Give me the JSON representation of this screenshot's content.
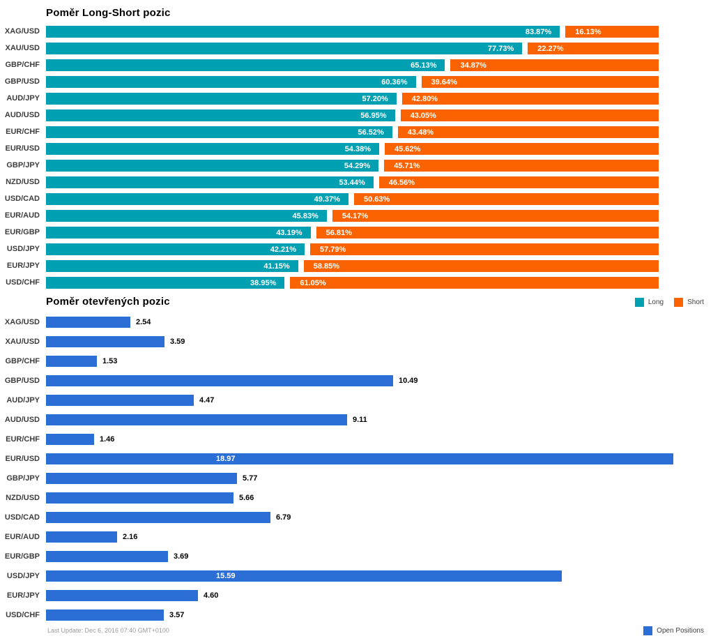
{
  "page": {
    "footer": "Last Update: Dec 6, 2016 07:40 GMT+0100"
  },
  "chart_data": [
    {
      "type": "bar",
      "orientation": "horizontal",
      "stacked": true,
      "title": "Poměr Long-Short pozic",
      "value_format": "percent",
      "xlim": [
        0,
        100
      ],
      "grid": false,
      "legend_position": "bottom-right",
      "categories": [
        "XAG/USD",
        "XAU/USD",
        "GBP/CHF",
        "GBP/USD",
        "AUD/JPY",
        "AUD/USD",
        "EUR/CHF",
        "EUR/USD",
        "GBP/JPY",
        "NZD/USD",
        "USD/CAD",
        "EUR/AUD",
        "EUR/GBP",
        "USD/JPY",
        "EUR/JPY",
        "USD/CHF"
      ],
      "series": [
        {
          "name": "Long",
          "color": "#00A0B2",
          "values": [
            83.87,
            77.73,
            65.13,
            60.36,
            57.2,
            56.95,
            56.52,
            54.38,
            54.29,
            53.44,
            49.37,
            45.83,
            43.19,
            42.21,
            41.15,
            38.95
          ]
        },
        {
          "name": "Short",
          "color": "#FA6300",
          "values": [
            16.13,
            22.27,
            34.87,
            39.64,
            42.8,
            43.05,
            43.48,
            45.62,
            45.71,
            46.56,
            50.63,
            54.17,
            56.81,
            57.79,
            58.85,
            61.05
          ]
        }
      ]
    },
    {
      "type": "bar",
      "orientation": "horizontal",
      "stacked": false,
      "title": "Poměr otevřených pozic",
      "value_format": "number",
      "xlim": [
        0,
        20.4
      ],
      "grid": false,
      "legend_position": "bottom-right",
      "categories": [
        "XAG/USD",
        "XAU/USD",
        "GBP/CHF",
        "GBP/USD",
        "AUD/JPY",
        "AUD/USD",
        "EUR/CHF",
        "EUR/USD",
        "GBP/JPY",
        "NZD/USD",
        "USD/CAD",
        "EUR/AUD",
        "EUR/GBP",
        "USD/JPY",
        "EUR/JPY",
        "USD/CHF"
      ],
      "series": [
        {
          "name": "Open Positions",
          "color": "#2B6FD6",
          "values": [
            2.54,
            3.59,
            1.53,
            10.49,
            4.47,
            9.11,
            1.46,
            18.97,
            5.77,
            5.66,
            6.79,
            2.16,
            3.69,
            15.59,
            4.6,
            3.57
          ]
        }
      ],
      "inside_labels": [
        "EUR/USD",
        "USD/JPY"
      ]
    }
  ]
}
